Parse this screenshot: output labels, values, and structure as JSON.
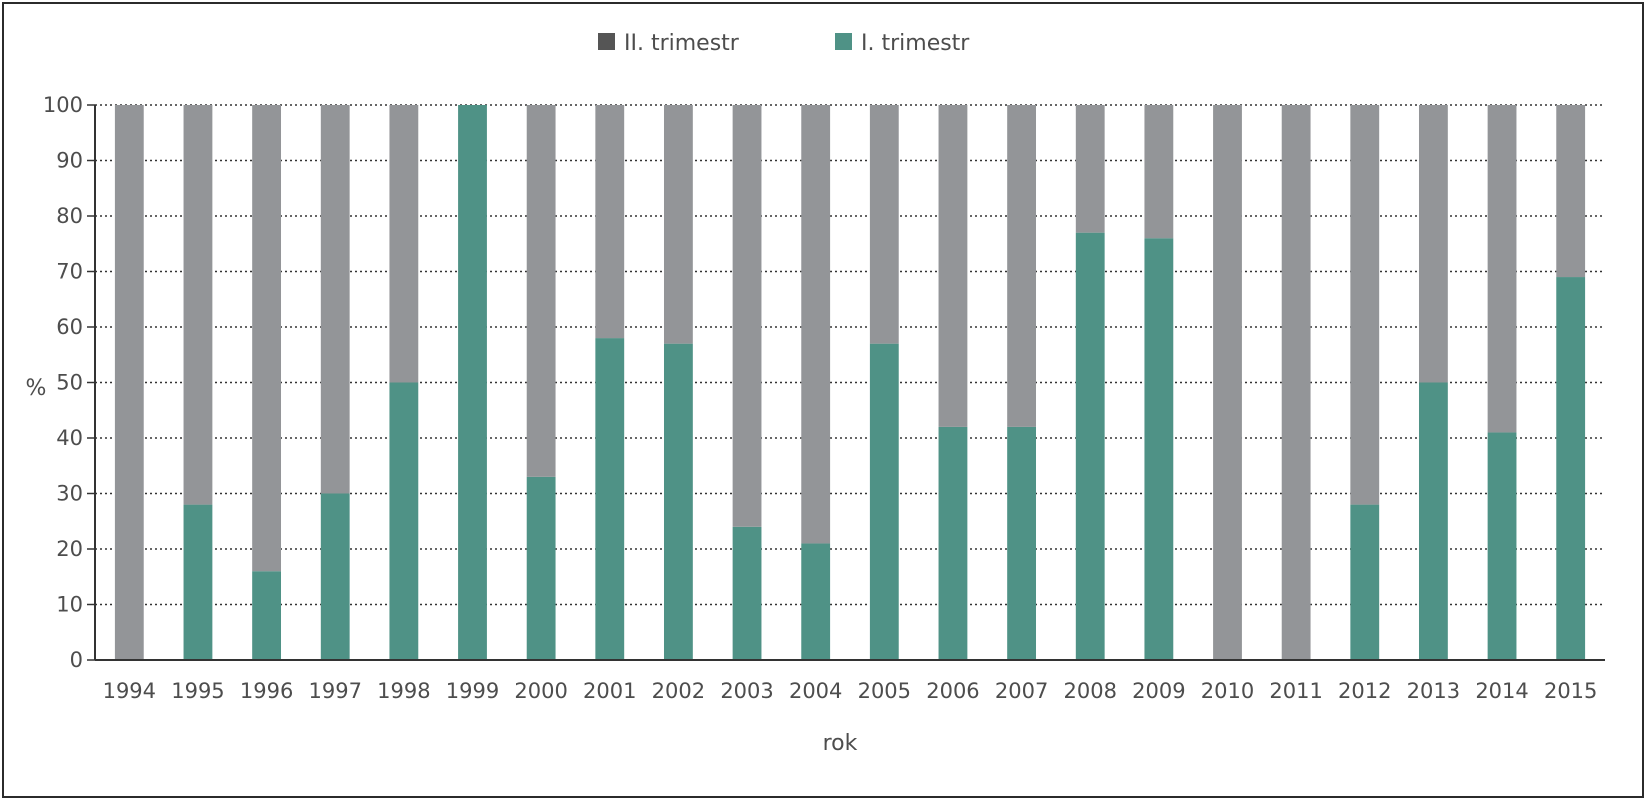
{
  "chart_data": {
    "type": "bar",
    "stacked": true,
    "categories": [
      "1994",
      "1995",
      "1996",
      "1997",
      "1998",
      "1999",
      "2000",
      "2001",
      "2002",
      "2003",
      "2004",
      "2005",
      "2006",
      "2007",
      "2008",
      "2009",
      "2010",
      "2011",
      "2012",
      "2013",
      "2014",
      "2015"
    ],
    "series": [
      {
        "name": "I. trimestr",
        "color": "#4f9286",
        "values": [
          0,
          28,
          16,
          30,
          50,
          100,
          33,
          58,
          57,
          24,
          21,
          57,
          42,
          42,
          77,
          76,
          0,
          0,
          28,
          50,
          41,
          69
        ]
      },
      {
        "name": "II. trimestr",
        "color": "#939598",
        "values": [
          100,
          72,
          84,
          70,
          50,
          0,
          67,
          42,
          43,
          76,
          79,
          43,
          58,
          58,
          23,
          24,
          100,
          100,
          72,
          50,
          59,
          31
        ]
      }
    ],
    "legend_order": [
      "II. trimestr",
      "I. trimestr"
    ],
    "legend_placement": "top-center",
    "title": "",
    "xlabel": "rok",
    "ylabel": "%",
    "ylim": [
      0,
      100
    ],
    "yticks": [
      0,
      10,
      20,
      30,
      40,
      50,
      60,
      70,
      80,
      90,
      100
    ],
    "grid": true
  }
}
